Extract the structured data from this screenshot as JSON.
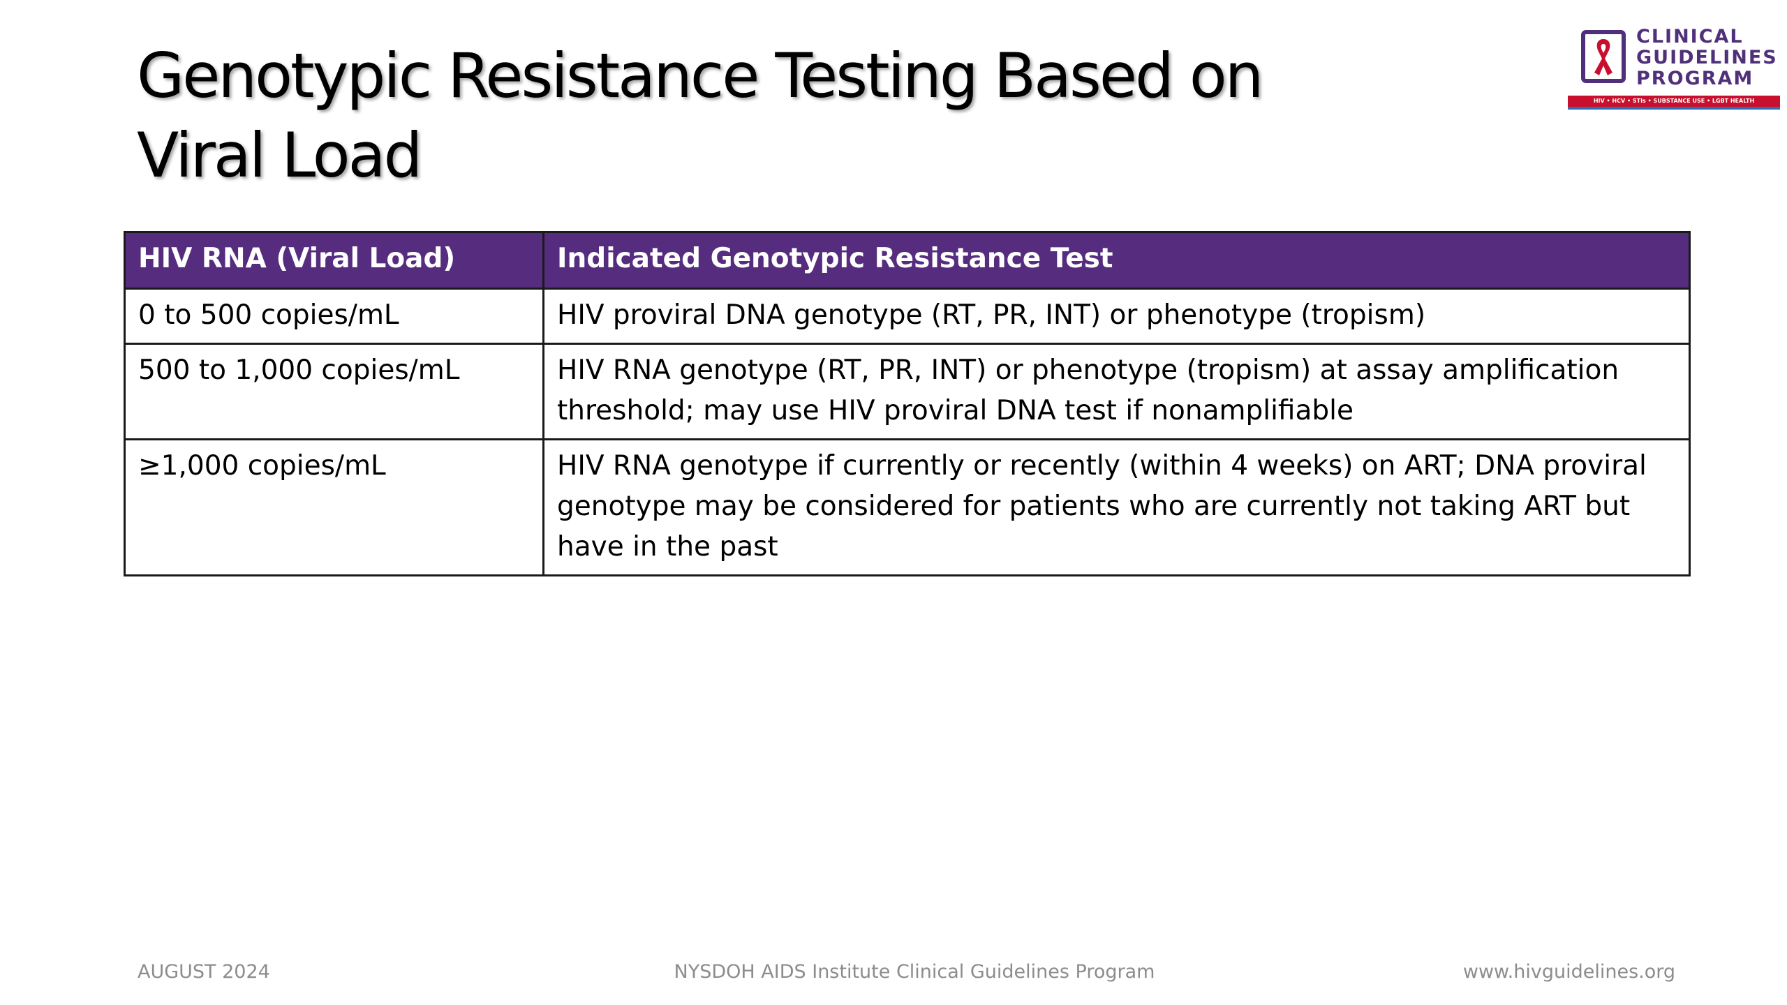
{
  "slide": {
    "title_line1": "Genotypic Resistance Testing Based on",
    "title_line2": "Viral Load"
  },
  "logo": {
    "line1": "CLINICAL",
    "line2": "GUIDELINES",
    "line3": "PROGRAM",
    "tagline": "HIV • HCV • STIs • SUBSTANCE USE • LGBT HEALTH",
    "icon": "ribbon-icon",
    "colors": {
      "text": "#50307a",
      "ribbon": "#c8102e",
      "tagline_bar": "#c8102e",
      "tagline_underline": "#2c6fb7"
    }
  },
  "table": {
    "headers": [
      "HIV RNA (Viral Load)",
      "Indicated Genotypic Resistance Test"
    ],
    "rows": [
      [
        "0 to 500 copies/mL",
        "HIV proviral DNA genotype (RT, PR, INT) or phenotype (tropism)"
      ],
      [
        "500 to 1,000 copies/mL",
        "HIV RNA genotype (RT, PR, INT) or phenotype (tropism) at assay amplification threshold; may use HIV proviral DNA test if nonamplifiable"
      ],
      [
        "≥1,000 copies/mL",
        "HIV RNA genotype if currently or recently (within 4 weeks) on ART; DNA proviral genotype may be considered for patients who are currently not taking ART but have in the past"
      ]
    ],
    "colors": {
      "header_bg": "#562d7e",
      "header_text": "#ffffff",
      "border": "#1a1a1a"
    }
  },
  "footer": {
    "date": "AUGUST 2024",
    "center": "NYSDOH AIDS Institute Clinical Guidelines Program",
    "url": "www.hivguidelines.org"
  }
}
